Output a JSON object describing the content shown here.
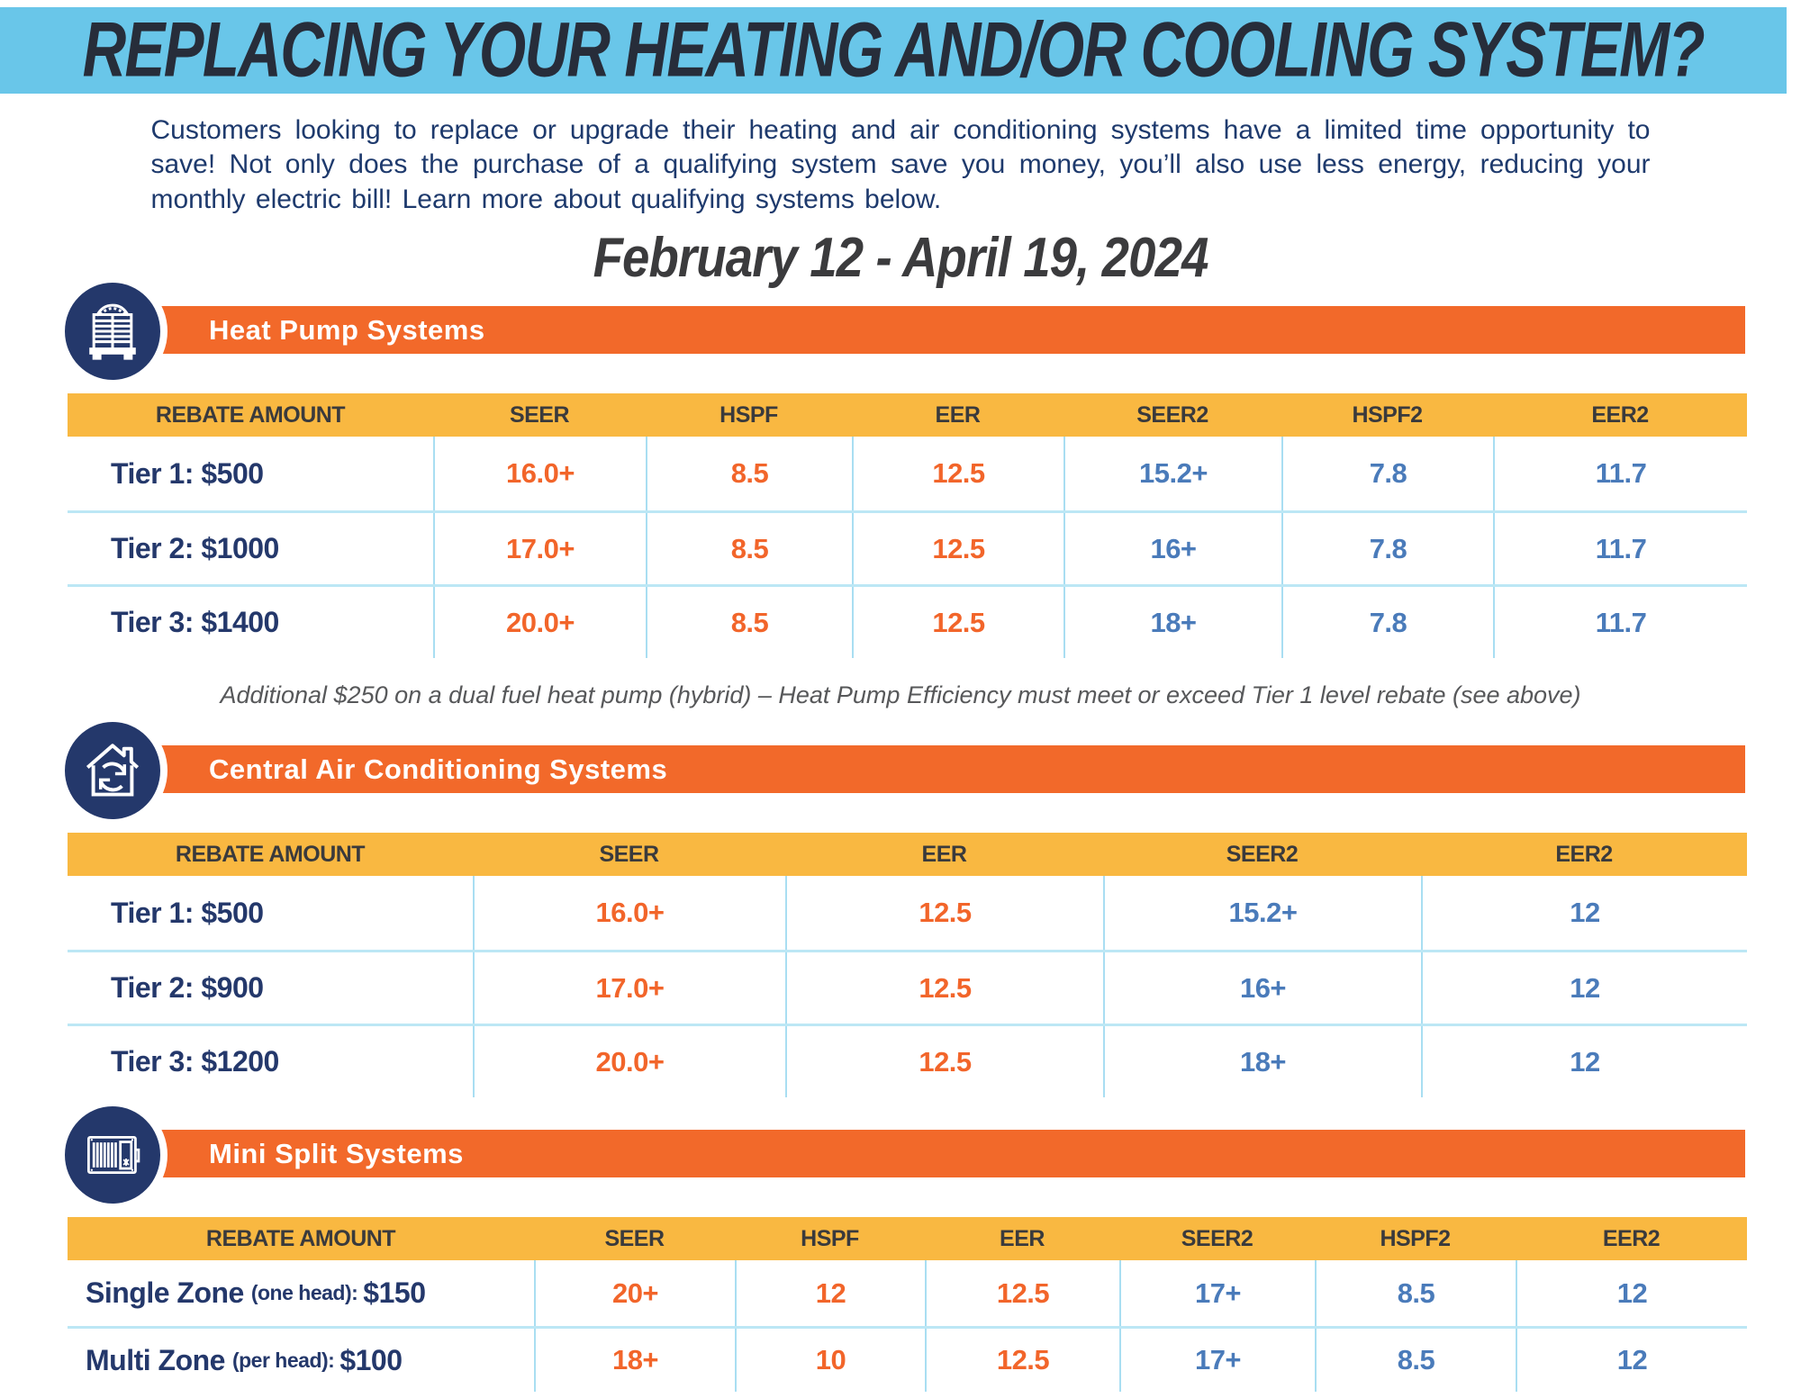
{
  "banner": {
    "title": "REPLACING YOUR HEATING AND/OR COOLING SYSTEM?"
  },
  "intro": {
    "text": "Customers looking to replace or upgrade their heating and air conditioning systems have a limited time opportunity to save! Not only does the purchase of a qualifying system save you money,  you’ll also use less energy, reducing your monthly electric bill! Learn more about qualifying systems below."
  },
  "date_range": "February 12 - April 19, 2024",
  "colors": {
    "banner_blue": "#69C6E9",
    "bar_orange": "#F2692A",
    "header_yellow": "#F9B841",
    "navy": "#24386B",
    "value_orange": "#F2652A",
    "value_blue": "#4A7BBA",
    "divider_blue": "#A9DEF2"
  },
  "sections": [
    {
      "id": "heat-pump",
      "title": "Heat Pump Systems",
      "icon": "heat-pump-icon",
      "columns": [
        "REBATE AMOUNT",
        "SEER",
        "HSPF",
        "EER",
        "SEER2",
        "HSPF2",
        "EER2"
      ],
      "orange_cols": 3,
      "rows": [
        {
          "label": "Tier 1: $500",
          "values": [
            "16.0+",
            "8.5",
            "12.5",
            "15.2+",
            "7.8",
            "11.7"
          ]
        },
        {
          "label": "Tier 2: $1000",
          "values": [
            "17.0+",
            "8.5",
            "12.5",
            "16+",
            "7.8",
            "11.7"
          ]
        },
        {
          "label": "Tier 3: $1400",
          "values": [
            "20.0+",
            "8.5",
            "12.5",
            "18+",
            "7.8",
            "11.7"
          ]
        }
      ],
      "note": "Additional $250 on a dual fuel heat pump (hybrid) – Heat Pump Efficiency must meet or exceed Tier 1 level rebate (see above)"
    },
    {
      "id": "central-air",
      "title": "Central Air Conditioning Systems",
      "icon": "home-cycle-icon",
      "columns": [
        "REBATE AMOUNT",
        "SEER",
        "EER",
        "SEER2",
        "EER2"
      ],
      "orange_cols": 2,
      "rows": [
        {
          "label": "Tier 1: $500",
          "values": [
            "16.0+",
            "12.5",
            "15.2+",
            "12"
          ]
        },
        {
          "label": "Tier 2: $900",
          "values": [
            "17.0+",
            "12.5",
            "16+",
            "12"
          ]
        },
        {
          "label": "Tier 3: $1200",
          "values": [
            "20.0+",
            "12.5",
            "18+",
            "12"
          ]
        }
      ]
    },
    {
      "id": "mini-split",
      "title": "Mini Split Systems",
      "icon": "mini-split-icon",
      "columns": [
        "REBATE AMOUNT",
        "SEER",
        "HSPF",
        "EER",
        "SEER2",
        "HSPF2",
        "EER2"
      ],
      "orange_cols": 3,
      "rows": [
        {
          "label_main": "Single Zone",
          "label_note": "(one head):",
          "label_amount": "$150",
          "values": [
            "20+",
            "12",
            "12.5",
            "17+",
            "8.5",
            "12"
          ]
        },
        {
          "label_main": "Multi Zone",
          "label_note": "(per head):",
          "label_amount": "$100",
          "values": [
            "18+",
            "10",
            "12.5",
            "17+",
            "8.5",
            "12"
          ]
        }
      ]
    }
  ]
}
